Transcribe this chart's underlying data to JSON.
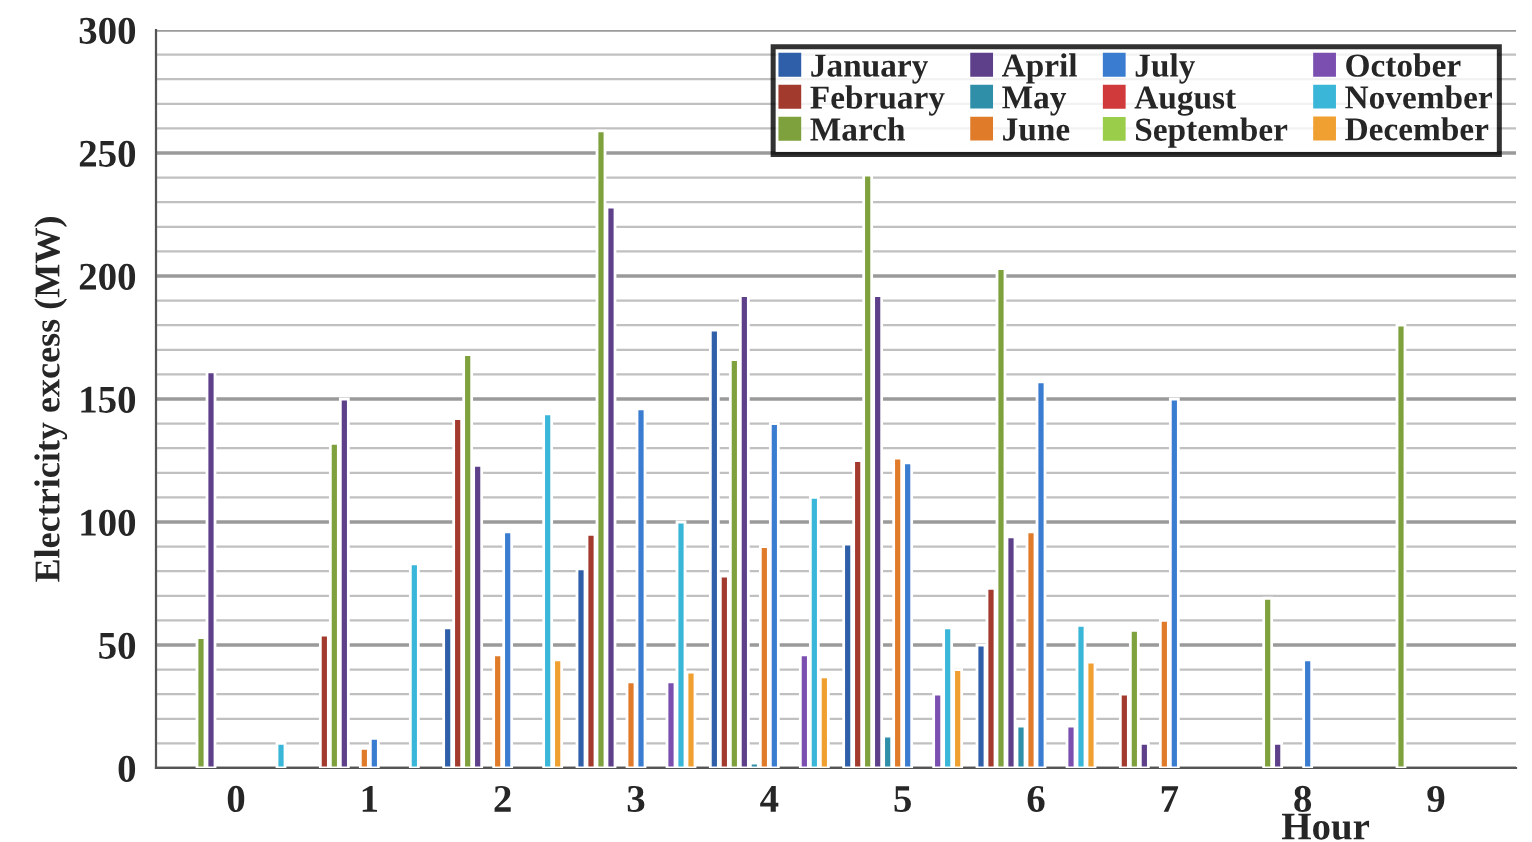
{
  "chart_data": {
    "type": "bar",
    "xlabel": "Hour",
    "ylabel": "Electricity excess (MW)",
    "categories": [
      "0",
      "1",
      "2",
      "3",
      "4",
      "5",
      "6",
      "7",
      "8",
      "9"
    ],
    "series": [
      {
        "name": "January",
        "color": "#2e5fa8",
        "values": [
          null,
          null,
          57,
          81,
          178,
          91,
          50,
          null,
          null,
          null
        ]
      },
      {
        "name": "February",
        "color": "#a33a2e",
        "values": [
          null,
          54,
          142,
          95,
          78,
          125,
          73,
          30,
          null,
          null
        ]
      },
      {
        "name": "March",
        "color": "#7fa13d",
        "values": [
          53,
          132,
          168,
          259,
          166,
          241,
          203,
          56,
          69,
          180
        ]
      },
      {
        "name": "April",
        "color": "#5d3f8a",
        "values": [
          161,
          150,
          123,
          228,
          192,
          192,
          94,
          10,
          10,
          null
        ]
      },
      {
        "name": "May",
        "color": "#2f8fa8",
        "values": [
          null,
          null,
          null,
          null,
          2,
          13,
          17,
          null,
          null,
          null
        ]
      },
      {
        "name": "June",
        "color": "#e07b2a",
        "values": [
          null,
          8,
          46,
          35,
          90,
          126,
          96,
          60,
          null,
          null
        ]
      },
      {
        "name": "July",
        "color": "#3a7dd0",
        "values": [
          null,
          12,
          96,
          146,
          140,
          124,
          157,
          150,
          44,
          null
        ]
      },
      {
        "name": "August",
        "color": "#d03a3a",
        "values": [
          null,
          null,
          null,
          null,
          null,
          null,
          null,
          null,
          null,
          null
        ]
      },
      {
        "name": "September",
        "color": "#9acd4a",
        "values": [
          null,
          null,
          null,
          null,
          null,
          null,
          null,
          null,
          null,
          null
        ]
      },
      {
        "name": "October",
        "color": "#7a4fb0",
        "values": [
          null,
          null,
          null,
          35,
          46,
          30,
          17,
          null,
          null,
          null
        ]
      },
      {
        "name": "November",
        "color": "#3ab6d8",
        "values": [
          10,
          83,
          144,
          100,
          110,
          57,
          58,
          null,
          null,
          null
        ]
      },
      {
        "name": "December",
        "color": "#f0a030",
        "values": [
          null,
          null,
          44,
          39,
          37,
          40,
          43,
          null,
          null,
          null
        ]
      }
    ],
    "ylim": [
      0,
      300
    ],
    "yticks": [
      0,
      50,
      100,
      150,
      200,
      250,
      300
    ],
    "grid": "y",
    "legend": "top right"
  }
}
